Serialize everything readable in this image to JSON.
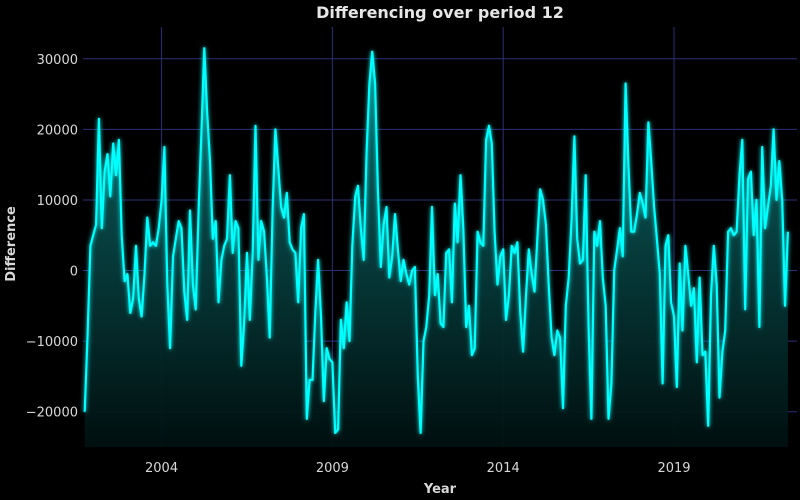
{
  "chart_data": {
    "type": "area",
    "title": "Differencing over period 12",
    "xlabel": "Year",
    "ylabel": "Difference",
    "xlim": [
      2001.7,
      2022.6
    ],
    "ylim": [
      -25000,
      34500
    ],
    "x_ticks": [
      2004,
      2009,
      2014,
      2019
    ],
    "y_ticks": [
      -20000,
      -10000,
      0,
      10000,
      20000,
      30000
    ],
    "y_tick_labels": [
      "−20000",
      "−10000",
      "0",
      "10000",
      "20000",
      "30000"
    ],
    "grid": true,
    "colors": {
      "line": "#00ffff",
      "fill_top": "#0e6f6f",
      "fill_bottom": "#001010",
      "grid": "#2c2f78",
      "background": "#000000"
    },
    "series": [
      {
        "x_start": 2001.75,
        "x_step": 0.08333,
        "values": [
          -20000,
          -9000,
          3500,
          5000,
          6500,
          21500,
          6000,
          14000,
          16500,
          10500,
          18000,
          13500,
          18500,
          5000,
          -1500,
          -500,
          -6000,
          -4000,
          3500,
          -4000,
          -6500,
          -500,
          7500,
          3500,
          4000,
          3500,
          6000,
          10000,
          17500,
          -2000,
          -11000,
          2000,
          4500,
          7000,
          6000,
          -3000,
          -7000,
          8500,
          -2000,
          -5500,
          8500,
          19500,
          31500,
          22500,
          15500,
          4500,
          7000,
          -4500,
          1500,
          3500,
          4500,
          13500,
          2500,
          7000,
          6000,
          -13500,
          -7500,
          2500,
          -7000,
          2500,
          20500,
          1500,
          7000,
          5500,
          -1000,
          -9500,
          8500,
          20000,
          14500,
          9000,
          7500,
          11000,
          4000,
          3000,
          2500,
          -4500,
          6000,
          8000,
          -21000,
          -15500,
          -15500,
          -6000,
          1500,
          -6500,
          -18500,
          -11000,
          -12500,
          -13000,
          -23000,
          -22500,
          -7000,
          -11000,
          -4500,
          -10000,
          3500,
          10500,
          12000,
          6000,
          1500,
          16500,
          26500,
          31000,
          26500,
          11500,
          500,
          6500,
          9000,
          -1000,
          2000,
          8000,
          3000,
          -1500,
          1500,
          -500,
          -2000,
          0,
          500,
          -15000,
          -23000,
          -10000,
          -8000,
          -3500,
          9000,
          -3500,
          -500,
          -7500,
          -8000,
          2500,
          3000,
          -4500,
          9500,
          4000,
          13500,
          6000,
          -8000,
          -5000,
          -12000,
          -11000,
          5500,
          4000,
          3500,
          18500,
          20500,
          18000,
          5500,
          -2000,
          2000,
          3000,
          -7000,
          -3500,
          3500,
          2500,
          4000,
          -6000,
          -11500,
          -3500,
          3000,
          -500,
          -3000,
          4500,
          11500,
          10000,
          6500,
          -2000,
          -9500,
          -12000,
          -8500,
          -9500,
          -19500,
          -5000,
          -1000,
          7000,
          19000,
          4500,
          1000,
          1500,
          13500,
          -8000,
          -21000,
          5500,
          3500,
          7000,
          -1000,
          -5000,
          -21000,
          -16000,
          0,
          3000,
          6000,
          2000,
          26500,
          15000,
          5500,
          5500,
          8000,
          11000,
          9500,
          7500,
          21000,
          15500,
          9000,
          4500,
          -500,
          -16000,
          3500,
          5000,
          -4500,
          -6500,
          -16500,
          1000,
          -8500,
          3500,
          -500,
          -5000,
          -2500,
          -13000,
          -1000,
          -12000,
          -11500,
          -22000,
          -3500,
          3500,
          -2000,
          -18000,
          -11500,
          -8500,
          5500,
          6000,
          5000,
          5500,
          13500,
          18500,
          -5500,
          13000,
          14000,
          5000,
          10000,
          -8000,
          17500,
          6000,
          9000,
          12000,
          20000,
          10000,
          15500,
          10000,
          -5000,
          5500
        ]
      }
    ]
  }
}
